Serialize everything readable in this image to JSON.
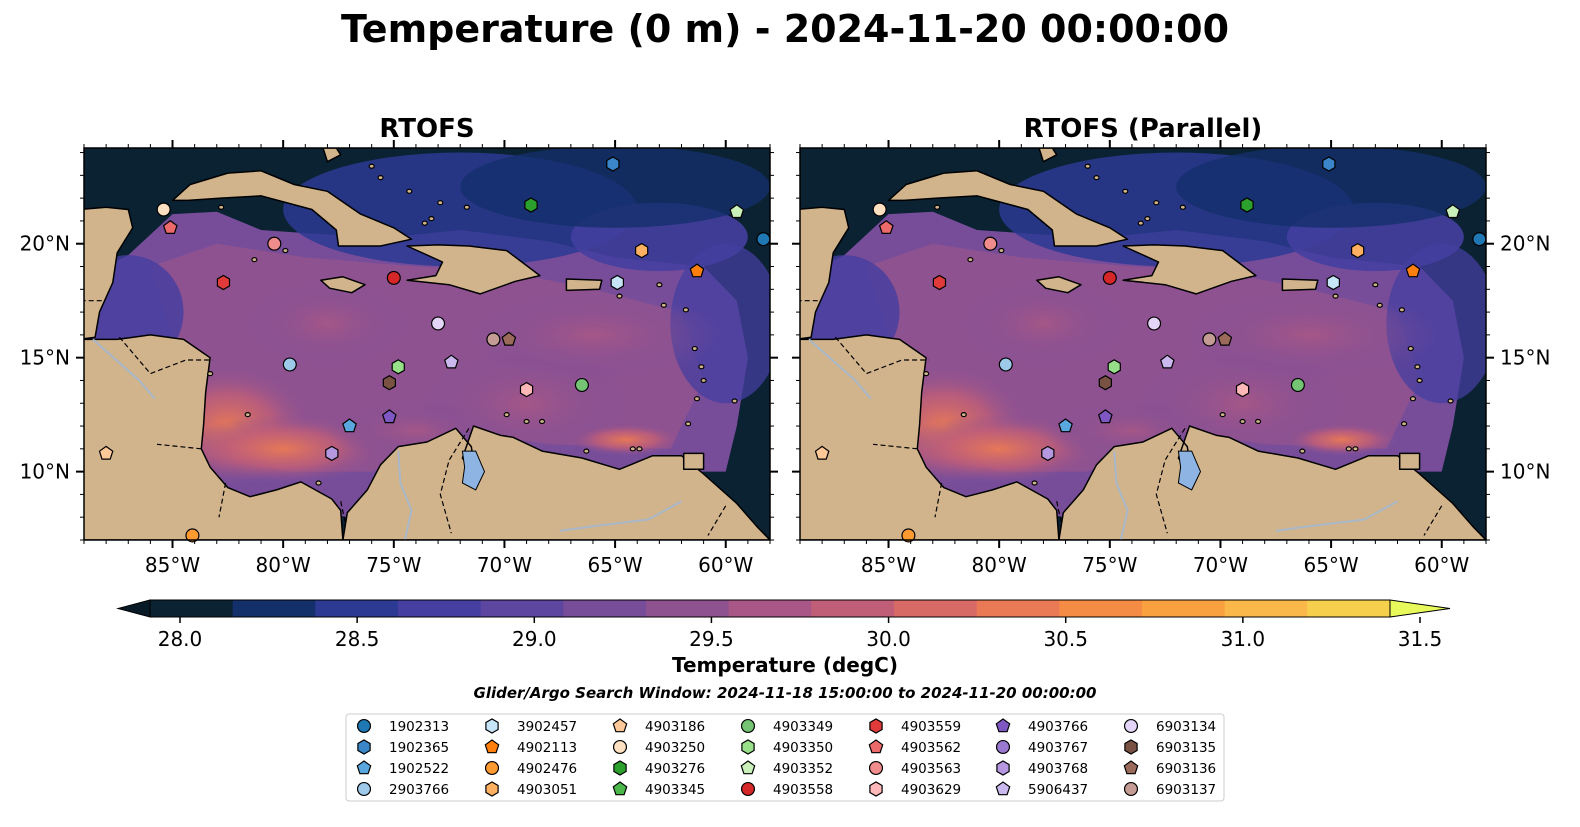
{
  "title": "Temperature (0 m) - 2024-11-20 00:00:00",
  "panels": [
    {
      "title": "RTOFS"
    },
    {
      "title": "RTOFS (Parallel)"
    }
  ],
  "map": {
    "lon_range": [
      -89,
      -58
    ],
    "lat_range": [
      7,
      24.2
    ],
    "lon_ticks": [
      {
        "v": -85,
        "label": "85°W"
      },
      {
        "v": -80,
        "label": "80°W"
      },
      {
        "v": -75,
        "label": "75°W"
      },
      {
        "v": -70,
        "label": "70°W"
      },
      {
        "v": -65,
        "label": "65°W"
      },
      {
        "v": -60,
        "label": "60°W"
      }
    ],
    "lat_ticks": [
      {
        "v": 10,
        "label": "10°N"
      },
      {
        "v": 15,
        "label": "15°N"
      },
      {
        "v": 20,
        "label": "20°N"
      }
    ],
    "colors": {
      "ocean_dark": "#0b2233",
      "land": "#d2b48c",
      "lake": "#8db4e2",
      "river": "#a8b8c8"
    }
  },
  "colorbar": {
    "label": "Temperature (degC)",
    "range": [
      28.0,
      31.5
    ],
    "ticks": [
      "28.0",
      "28.5",
      "29.0",
      "29.5",
      "30.0",
      "30.5",
      "31.0",
      "31.5"
    ],
    "colors": [
      "#0b2233",
      "#14306b",
      "#2c3a94",
      "#443fa0",
      "#5c46a0",
      "#774d9a",
      "#8f5290",
      "#a85786",
      "#c05e78",
      "#d86a66",
      "#ea7a55",
      "#f48c45",
      "#f9a03f",
      "#f9b849",
      "#f6d04d"
    ],
    "under_color": "#081a26",
    "over_color": "#e8fa5b"
  },
  "search_window": "Glider/Argo Search Window: 2024-11-18 15:00:00 to 2024-11-20 00:00:00",
  "legend": [
    {
      "id": "1902313",
      "color": "#1f77b4",
      "marker": "circle"
    },
    {
      "id": "1902365",
      "color": "#3a86c8",
      "marker": "hexagon"
    },
    {
      "id": "1902522",
      "color": "#5aa7e0",
      "marker": "pentagon"
    },
    {
      "id": "2903766",
      "color": "#9ecae9",
      "marker": "circle"
    },
    {
      "id": "3902457",
      "color": "#c6e5f7",
      "marker": "hexagon"
    },
    {
      "id": "4902113",
      "color": "#ff7f0e",
      "marker": "pentagon"
    },
    {
      "id": "4902476",
      "color": "#ff9a30",
      "marker": "circle"
    },
    {
      "id": "4903051",
      "color": "#ffb060",
      "marker": "hexagon"
    },
    {
      "id": "4903186",
      "color": "#ffc898",
      "marker": "pentagon"
    },
    {
      "id": "4903250",
      "color": "#ffe0c0",
      "marker": "circle"
    },
    {
      "id": "4903276",
      "color": "#2ca02c",
      "marker": "hexagon"
    },
    {
      "id": "4903345",
      "color": "#4cb84c",
      "marker": "pentagon"
    },
    {
      "id": "4903349",
      "color": "#74c474",
      "marker": "circle"
    },
    {
      "id": "4903350",
      "color": "#98df8a",
      "marker": "hexagon"
    },
    {
      "id": "4903352",
      "color": "#c8f0b8",
      "marker": "pentagon"
    },
    {
      "id": "4903558",
      "color": "#d62728",
      "marker": "circle"
    },
    {
      "id": "4903559",
      "color": "#e03a3a",
      "marker": "hexagon"
    },
    {
      "id": "4903562",
      "color": "#ec6a6a",
      "marker": "pentagon"
    },
    {
      "id": "4903563",
      "color": "#f08c8c",
      "marker": "circle"
    },
    {
      "id": "4903629",
      "color": "#ffb8b8",
      "marker": "hexagon"
    },
    {
      "id": "4903766",
      "color": "#7e57c2",
      "marker": "pentagon"
    },
    {
      "id": "4903767",
      "color": "#9a78d0",
      "marker": "circle"
    },
    {
      "id": "4903768",
      "color": "#b598e0",
      "marker": "hexagon"
    },
    {
      "id": "5906437",
      "color": "#cbb8ee",
      "marker": "pentagon"
    },
    {
      "id": "6903134",
      "color": "#e4d4f8",
      "marker": "circle"
    },
    {
      "id": "6903135",
      "color": "#7a5244",
      "marker": "hexagon"
    },
    {
      "id": "6903136",
      "color": "#9a6a5a",
      "marker": "pentagon"
    },
    {
      "id": "6903137",
      "color": "#c49c94",
      "marker": "circle"
    }
  ],
  "floats": [
    {
      "id": "1902313",
      "lon": -58.3,
      "lat": 20.2
    },
    {
      "id": "1902365",
      "lon": -65.1,
      "lat": 23.5
    },
    {
      "id": "1902522",
      "lon": -77.0,
      "lat": 12.0
    },
    {
      "id": "2903766",
      "lon": -79.7,
      "lat": 14.7
    },
    {
      "id": "3902457",
      "lon": -64.9,
      "lat": 18.3
    },
    {
      "id": "4902113",
      "lon": -61.3,
      "lat": 18.8
    },
    {
      "id": "4902476",
      "lon": -84.1,
      "lat": 7.2
    },
    {
      "id": "4903051",
      "lon": -63.8,
      "lat": 19.7
    },
    {
      "id": "4903186",
      "lon": -88.0,
      "lat": 10.8
    },
    {
      "id": "4903250",
      "lon": -85.4,
      "lat": 21.5
    },
    {
      "id": "4903276",
      "lon": -68.8,
      "lat": 21.7
    },
    {
      "id": "4903349",
      "lon": -66.5,
      "lat": 13.8
    },
    {
      "id": "4903350",
      "lon": -74.8,
      "lat": 14.6
    },
    {
      "id": "4903352",
      "lon": -59.5,
      "lat": 21.4
    },
    {
      "id": "4903558",
      "lon": -75.0,
      "lat": 18.5
    },
    {
      "id": "4903559",
      "lon": -82.7,
      "lat": 18.3
    },
    {
      "id": "4903562",
      "lon": -85.1,
      "lat": 20.7
    },
    {
      "id": "4903563",
      "lon": -80.4,
      "lat": 20.0
    },
    {
      "id": "4903629",
      "lon": -69.0,
      "lat": 13.6
    },
    {
      "id": "4903766",
      "lon": -75.2,
      "lat": 12.4
    },
    {
      "id": "4903768",
      "lon": -77.8,
      "lat": 10.8
    },
    {
      "id": "5906437",
      "lon": -72.4,
      "lat": 14.8
    },
    {
      "id": "6903134",
      "lon": -73.0,
      "lat": 16.5
    },
    {
      "id": "6903135",
      "lon": -75.2,
      "lat": 13.9
    },
    {
      "id": "6903136",
      "lon": -69.8,
      "lat": 15.8
    },
    {
      "id": "6903137",
      "lon": -70.5,
      "lat": 15.8
    }
  ]
}
